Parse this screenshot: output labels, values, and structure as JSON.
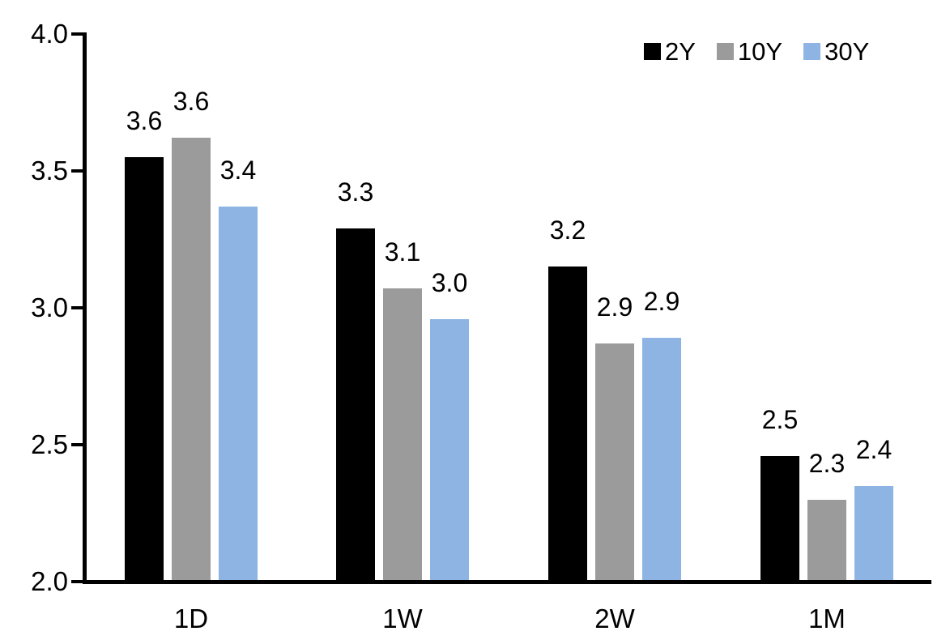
{
  "chart_data": {
    "type": "bar",
    "title": "",
    "xlabel": "",
    "ylabel": "",
    "categories": [
      "1D",
      "1W",
      "2W",
      "1M"
    ],
    "series": [
      {
        "name": "2Y",
        "color": "#000000",
        "values": [
          3.55,
          3.29,
          3.15,
          2.46
        ],
        "labels": [
          "3.6",
          "3.3",
          "3.2",
          "2.5"
        ]
      },
      {
        "name": "10Y",
        "color": "#9B9B9B",
        "values": [
          3.62,
          3.07,
          2.87,
          2.3
        ],
        "labels": [
          "3.6",
          "3.1",
          "2.9",
          "2.3"
        ]
      },
      {
        "name": "30Y",
        "color": "#8DB4E2",
        "values": [
          3.37,
          2.96,
          2.89,
          2.35
        ],
        "labels": [
          "3.4",
          "3.0",
          "2.9",
          "2.4"
        ]
      }
    ],
    "ylim": [
      2.0,
      4.0
    ],
    "ytick_values": [
      4.0,
      3.5,
      3.0,
      2.5,
      2.0
    ],
    "ytick_labels": [
      "4.0",
      "3.5",
      "3.0",
      "2.5",
      "2.0"
    ],
    "grid": false,
    "legend_position": "top-right",
    "axis_color": "#000000",
    "background_color": "#FFFFFF"
  }
}
